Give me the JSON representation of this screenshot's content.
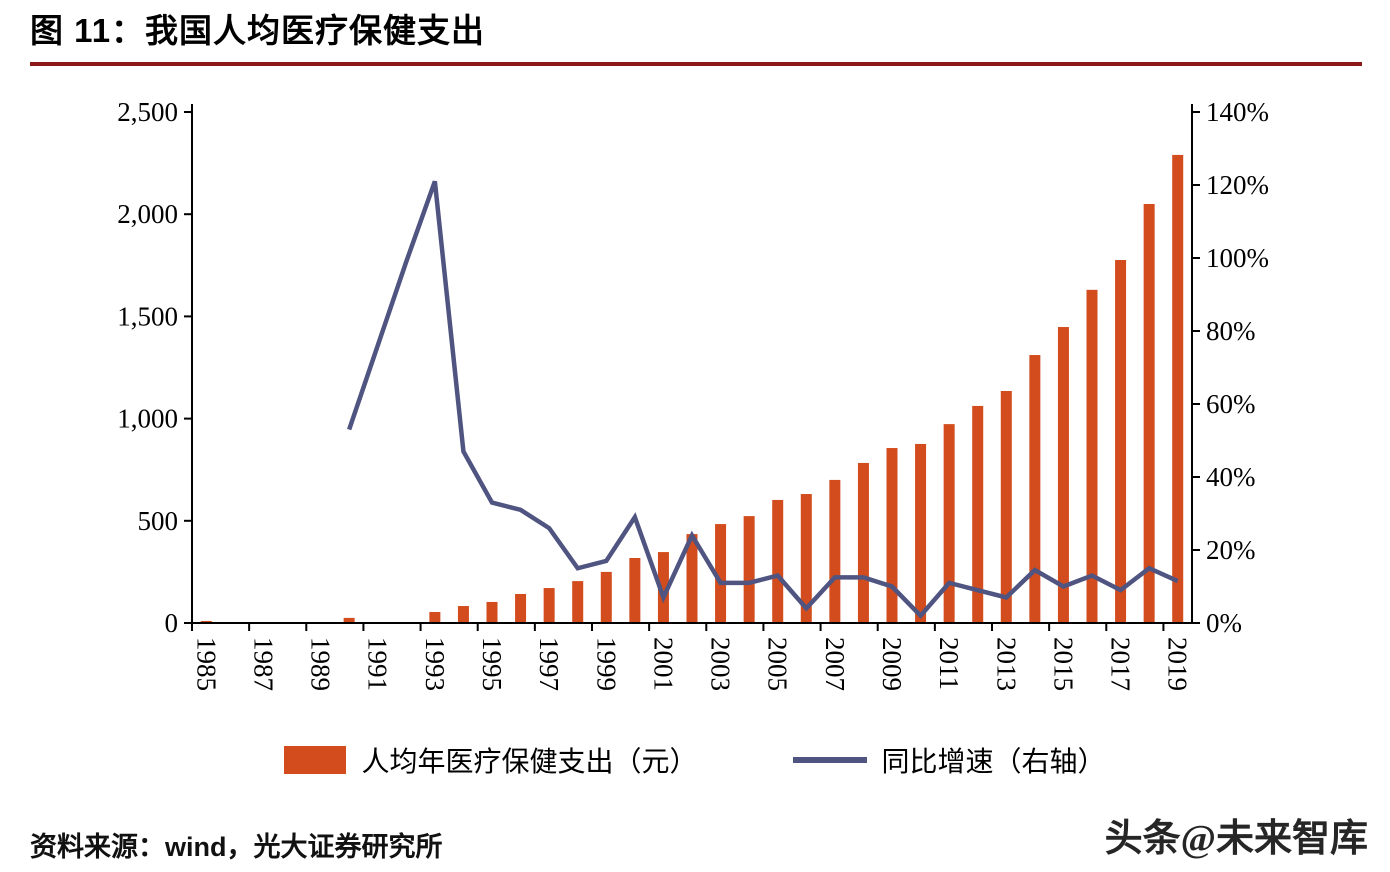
{
  "title": "图 11：我国人均医疗保健支出",
  "source": "资料来源：wind，光大证券研究所",
  "watermark": "头条@未来智库",
  "colors": {
    "bar": "#D34C1D",
    "line": "#4F5480",
    "title_rule": "#8A1A1A",
    "axis": "#000000"
  },
  "chart_data": {
    "type": "bar",
    "subtype": "bar+line combo, dual axis",
    "title": "图 11：我国人均医疗保健支出",
    "categories": [
      1985,
      1986,
      1987,
      1988,
      1989,
      1990,
      1991,
      1992,
      1993,
      1994,
      1995,
      1996,
      1997,
      1998,
      1999,
      2000,
      2001,
      2002,
      2003,
      2004,
      2005,
      2006,
      2007,
      2008,
      2009,
      2010,
      2011,
      2012,
      2013,
      2014,
      2015,
      2016,
      2017,
      2018,
      2019
    ],
    "x_axis_tick_labels": [
      "1985",
      "1987",
      "1989",
      "1991",
      "1993",
      "1995",
      "1997",
      "1999",
      "2001",
      "2003",
      "2005",
      "2007",
      "2009",
      "2011",
      "2013",
      "2015",
      "2017",
      "2019"
    ],
    "left_axis": {
      "min": 0,
      "max": 2500,
      "step": 500,
      "tick_labels": [
        "0",
        "500",
        "1,000",
        "1,500",
        "2,000",
        "2,500"
      ],
      "unit": "元"
    },
    "right_axis": {
      "min": 0,
      "max": 140,
      "step": 20,
      "tick_labels": [
        "0%",
        "20%",
        "40%",
        "60%",
        "80%",
        "100%",
        "120%",
        "140%"
      ],
      "unit": "%"
    },
    "grid": false,
    "legend_position": "bottom",
    "series": [
      {
        "name": "人均年医疗保健支出（元）",
        "type": "bar",
        "axis": "left",
        "unit": "元",
        "color": "#D34C1D",
        "values": [
          10,
          null,
          null,
          null,
          null,
          25,
          null,
          null,
          54,
          83,
          103,
          142,
          171,
          205,
          250,
          318,
          347,
          435,
          484,
          523,
          602,
          631,
          700,
          783,
          856,
          876,
          973,
          1062,
          1135,
          1311,
          1448,
          1630,
          1776,
          2050,
          2290
        ]
      },
      {
        "name": "同比增速（右轴）",
        "type": "line",
        "axis": "right",
        "unit": "%",
        "color": "#4F5480",
        "values": [
          null,
          null,
          null,
          null,
          null,
          53,
          76,
          99,
          121,
          47,
          33,
          31,
          26,
          15,
          17,
          29,
          7,
          24,
          11,
          11,
          13,
          4,
          12.5,
          12.5,
          10,
          2,
          11,
          9,
          7,
          14.5,
          10,
          13,
          9,
          15,
          11.5
        ]
      }
    ]
  }
}
